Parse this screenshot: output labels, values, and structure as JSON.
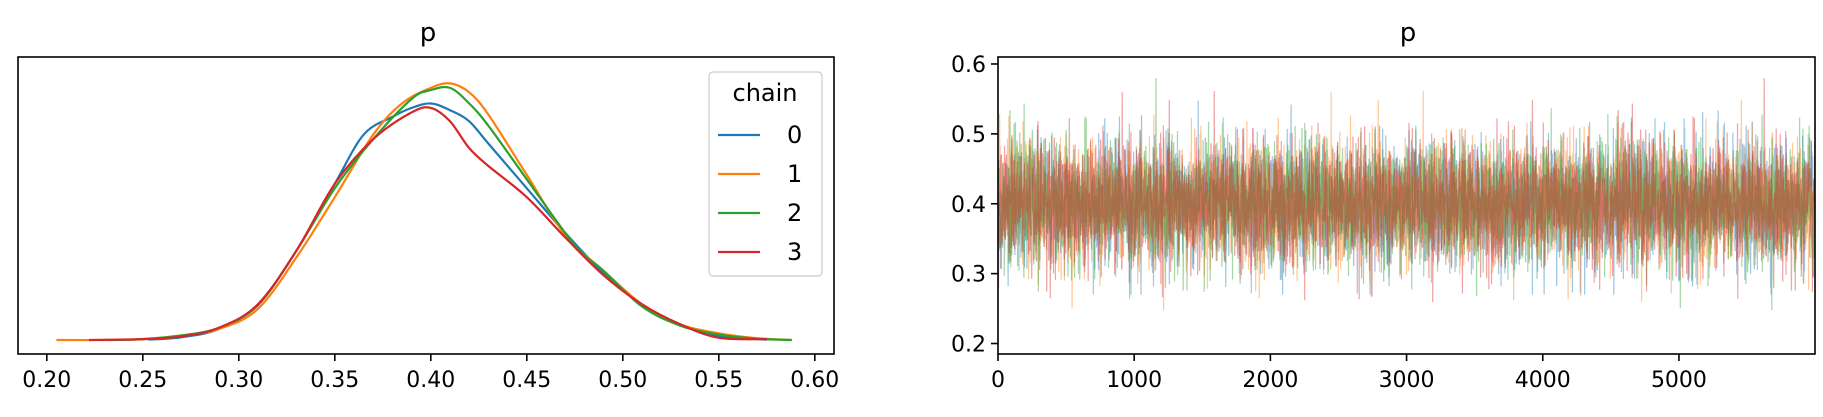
{
  "chart_data": [
    {
      "type": "line",
      "title": "p",
      "xlabel": "",
      "ylabel": "",
      "xlim": [
        0.185,
        0.61
      ],
      "xticks": [
        0.2,
        0.25,
        0.3,
        0.35,
        0.4,
        0.45,
        0.5,
        0.55,
        0.6
      ],
      "xtick_labels": [
        "0.20",
        "0.25",
        "0.30",
        "0.35",
        "0.40",
        "0.45",
        "0.50",
        "0.55",
        "0.60"
      ],
      "show_yticks": false,
      "grid": false,
      "legend": {
        "title": "chain",
        "placement": "top-right",
        "entries": [
          "0",
          "1",
          "2",
          "3"
        ]
      },
      "series": [
        {
          "name": "0",
          "color": "#1f77b4",
          "x": [
            0.253,
            0.27,
            0.29,
            0.31,
            0.33,
            0.35,
            0.365,
            0.38,
            0.39,
            0.4,
            0.41,
            0.42,
            0.43,
            0.45,
            0.47,
            0.49,
            0.51,
            0.53,
            0.55,
            0.575
          ],
          "y": [
            0.01,
            0.06,
            0.25,
            0.8,
            2.0,
            3.5,
            4.6,
            5.0,
            5.2,
            5.3,
            5.15,
            4.9,
            4.4,
            3.4,
            2.4,
            1.5,
            0.8,
            0.35,
            0.08,
            0.01
          ]
        },
        {
          "name": "1",
          "color": "#ff7f0e",
          "x": [
            0.205,
            0.23,
            0.25,
            0.27,
            0.29,
            0.31,
            0.33,
            0.35,
            0.37,
            0.385,
            0.4,
            0.41,
            0.42,
            0.43,
            0.45,
            0.47,
            0.49,
            0.51,
            0.53,
            0.55,
            0.57,
            0.588
          ],
          "y": [
            0.0,
            0.0,
            0.02,
            0.1,
            0.25,
            0.7,
            1.85,
            3.2,
            4.6,
            5.3,
            5.65,
            5.75,
            5.55,
            5.05,
            3.7,
            2.35,
            1.55,
            0.8,
            0.35,
            0.15,
            0.04,
            0.0
          ]
        },
        {
          "name": "2",
          "color": "#2ca02c",
          "x": [
            0.233,
            0.25,
            0.27,
            0.29,
            0.31,
            0.33,
            0.35,
            0.37,
            0.39,
            0.4,
            0.41,
            0.42,
            0.43,
            0.45,
            0.47,
            0.48,
            0.49,
            0.51,
            0.53,
            0.55,
            0.57,
            0.588
          ],
          "y": [
            0.0,
            0.02,
            0.1,
            0.28,
            0.78,
            2.0,
            3.4,
            4.5,
            5.4,
            5.6,
            5.65,
            5.3,
            4.8,
            3.6,
            2.4,
            1.9,
            1.55,
            0.75,
            0.32,
            0.12,
            0.03,
            0.0
          ]
        },
        {
          "name": "3",
          "color": "#d62728",
          "x": [
            0.222,
            0.25,
            0.27,
            0.29,
            0.31,
            0.33,
            0.35,
            0.37,
            0.39,
            0.4,
            0.41,
            0.42,
            0.43,
            0.45,
            0.47,
            0.49,
            0.51,
            0.53,
            0.55,
            0.575
          ],
          "y": [
            0.0,
            0.02,
            0.08,
            0.28,
            0.8,
            2.0,
            3.5,
            4.5,
            5.1,
            5.2,
            4.9,
            4.3,
            3.9,
            3.2,
            2.3,
            1.45,
            0.8,
            0.35,
            0.05,
            0.02
          ]
        }
      ]
    },
    {
      "type": "line",
      "title": "p",
      "xlabel": "",
      "ylabel": "",
      "xlim": [
        0,
        5999
      ],
      "ylim": [
        0.185,
        0.61
      ],
      "xticks": [
        0,
        1000,
        2000,
        3000,
        4000,
        5000
      ],
      "xtick_labels": [
        "0",
        "1000",
        "2000",
        "3000",
        "4000",
        "5000"
      ],
      "yticks": [
        0.2,
        0.3,
        0.4,
        0.5,
        0.6
      ],
      "ytick_labels": [
        "0.2",
        "0.3",
        "0.4",
        "0.5",
        "0.6"
      ],
      "grid": false,
      "draws_per_chain": 6000,
      "series": [
        {
          "name": "0",
          "color": "#1f77b4",
          "mean": 0.4,
          "sd": 0.045,
          "min": 0.27,
          "max": 0.58
        },
        {
          "name": "1",
          "color": "#ff7f0e",
          "mean": 0.4,
          "sd": 0.045,
          "min": 0.2,
          "max": 0.59
        },
        {
          "name": "2",
          "color": "#2ca02c",
          "mean": 0.4,
          "sd": 0.045,
          "min": 0.23,
          "max": 0.58
        },
        {
          "name": "3",
          "color": "#d62728",
          "mean": 0.4,
          "sd": 0.045,
          "min": 0.24,
          "max": 0.58
        }
      ]
    }
  ]
}
